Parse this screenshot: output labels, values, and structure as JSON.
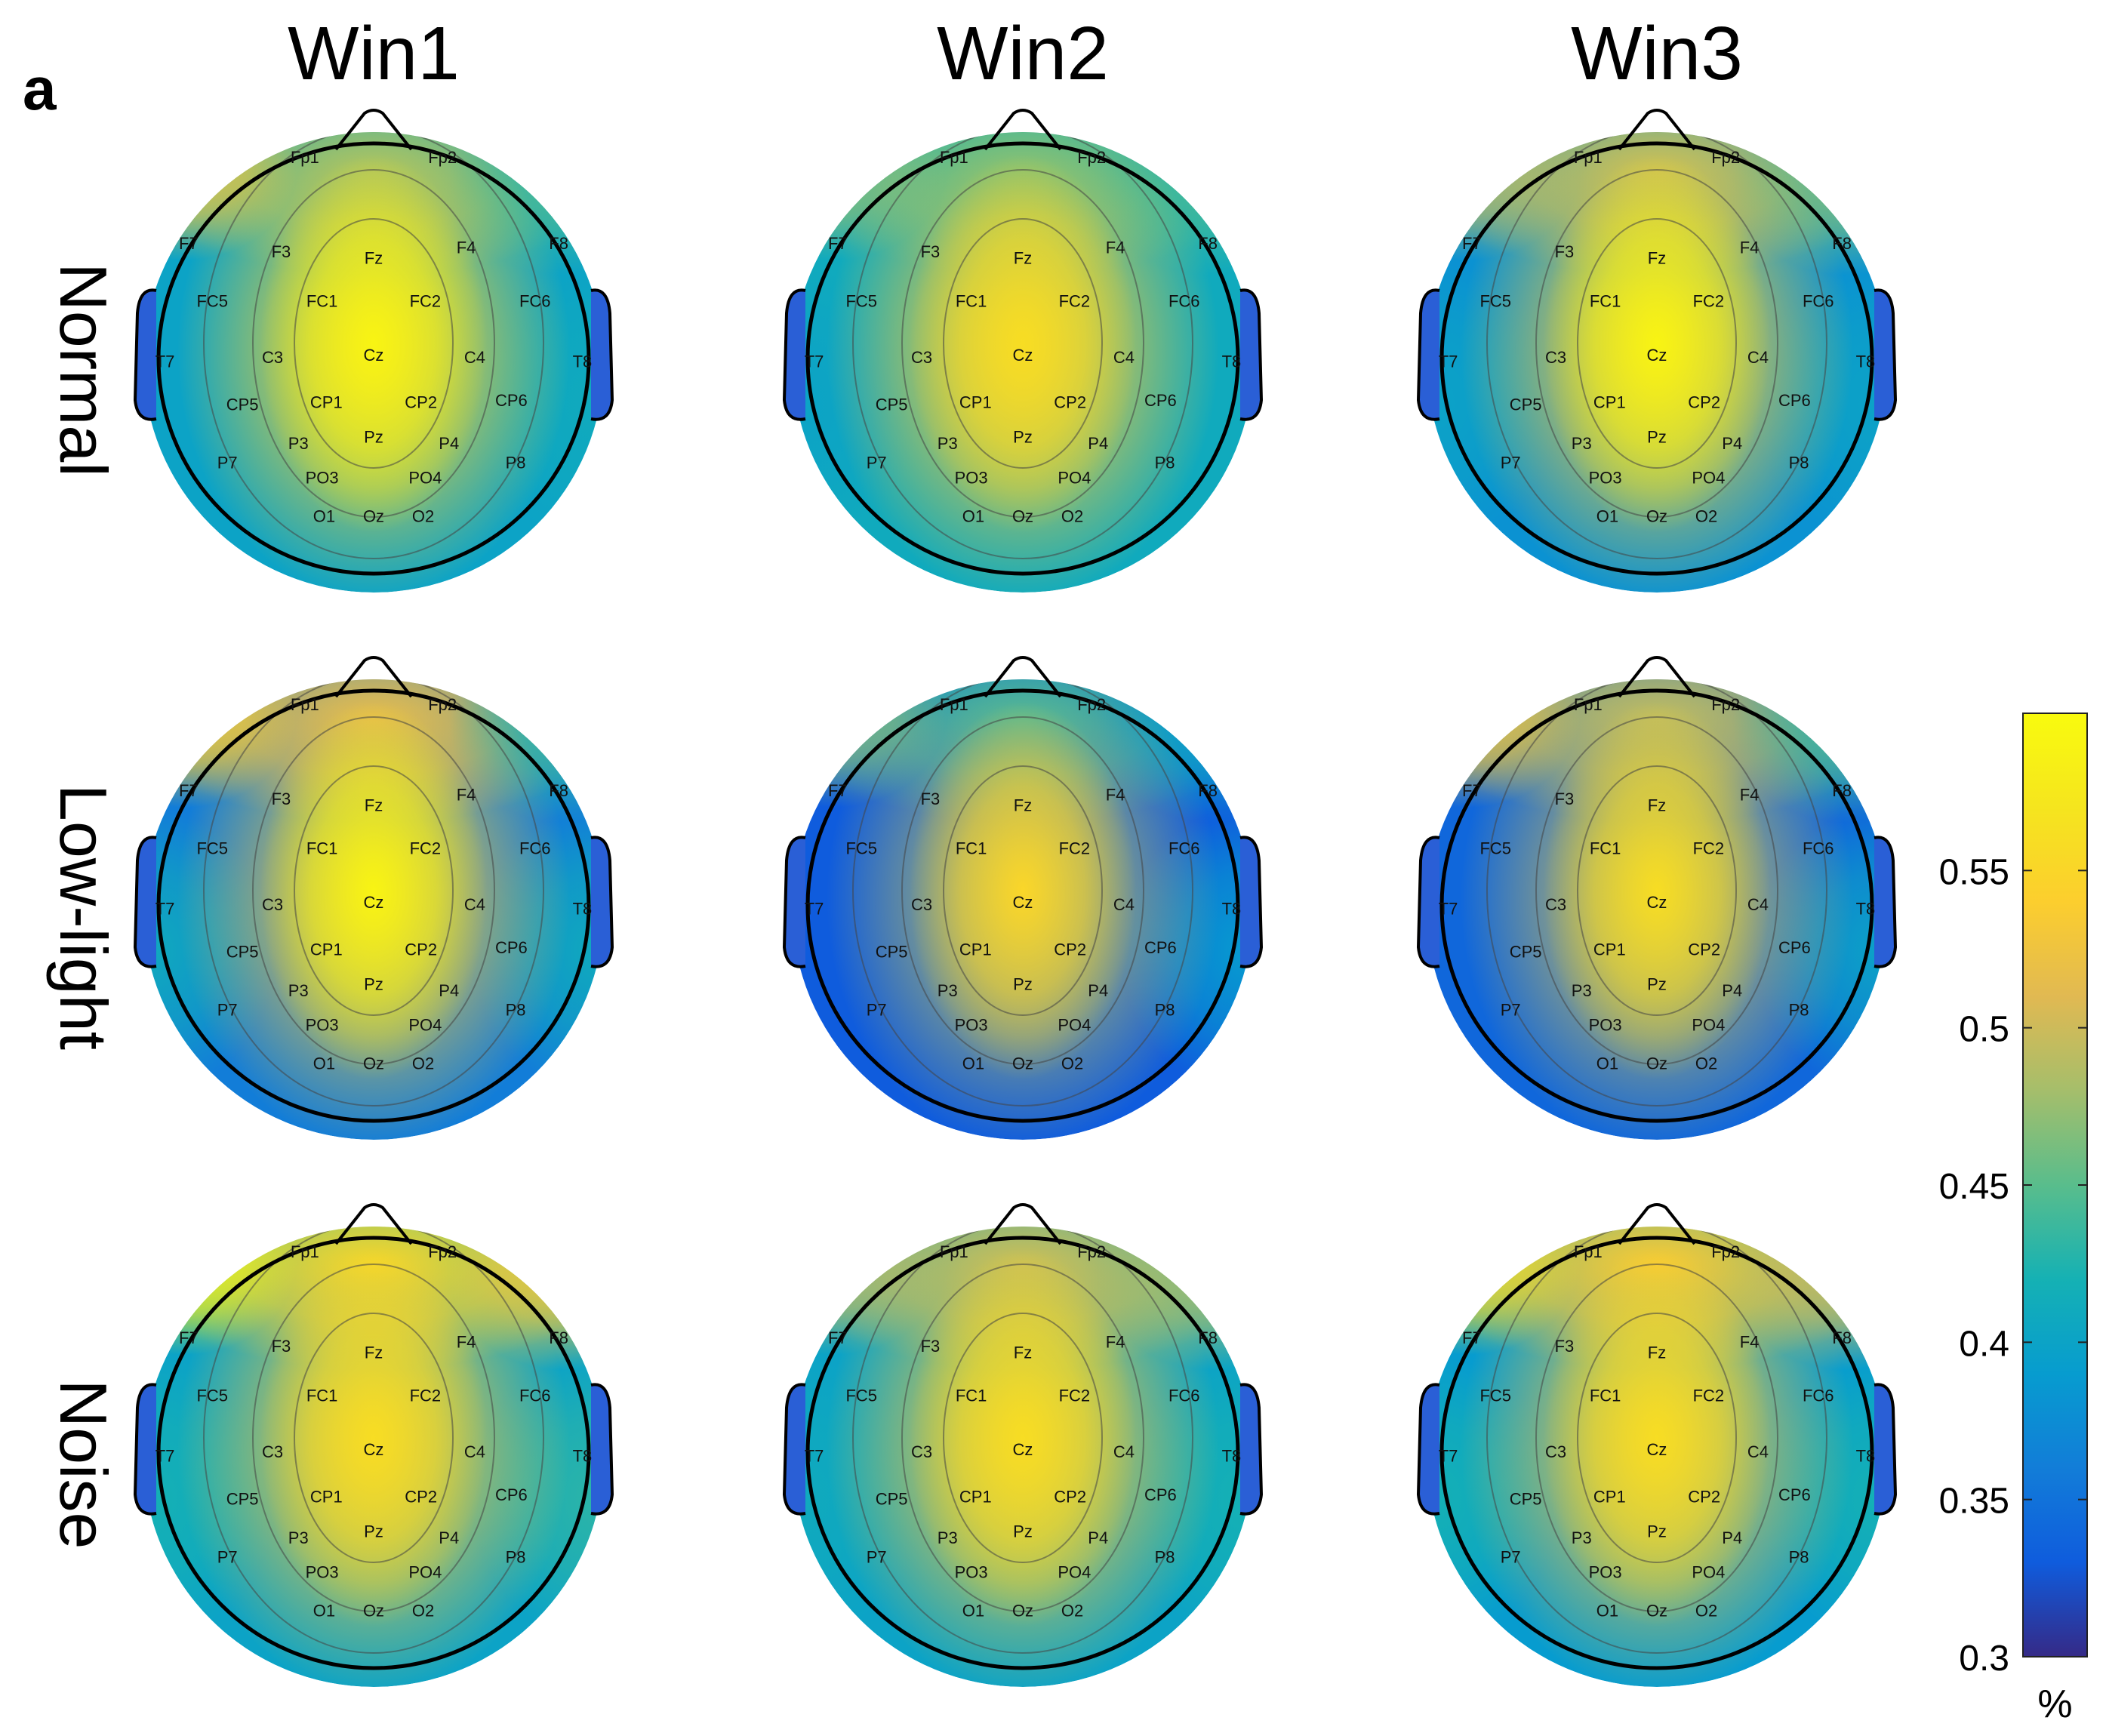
{
  "panel_label": "a",
  "chart_data": {
    "type": "heatmap",
    "columns": [
      "Win1",
      "Win2",
      "Win3"
    ],
    "rows": [
      "Normal",
      "Low-light",
      "Noise"
    ],
    "electrodes": [
      "Fp1",
      "Fp2",
      "F7",
      "F3",
      "Fz",
      "F4",
      "F8",
      "FC5",
      "FC1",
      "FC2",
      "FC6",
      "T7",
      "C3",
      "Cz",
      "C4",
      "T8",
      "CP5",
      "CP1",
      "CP2",
      "CP6",
      "P7",
      "P3",
      "Pz",
      "P4",
      "P8",
      "PO3",
      "PO4",
      "O1",
      "Oz",
      "O2"
    ],
    "colorbar": {
      "ticks": [
        "0.55",
        "0.5",
        "0.45",
        "0.4",
        "0.35",
        "0.3"
      ],
      "tick_values": [
        0.55,
        0.5,
        0.45,
        0.4,
        0.35,
        0.3
      ],
      "range": [
        0.3,
        0.6
      ],
      "unit": "%",
      "colormap": "parula"
    },
    "maps": [
      [
        {
          "center": 0.59,
          "frontal": 0.47,
          "leftFront": 0.53,
          "rightFront": 0.44,
          "left": 0.4,
          "right": 0.41,
          "occipital": 0.4
        },
        {
          "center": 0.56,
          "frontal": 0.45,
          "leftFront": 0.47,
          "rightFront": 0.44,
          "left": 0.4,
          "right": 0.41,
          "occipital": 0.41
        },
        {
          "center": 0.59,
          "frontal": 0.49,
          "leftFront": 0.49,
          "rightFront": 0.46,
          "left": 0.4,
          "right": 0.4,
          "occipital": 0.38
        }
      ],
      [
        {
          "center": 0.59,
          "frontal": 0.51,
          "leftFront": 0.54,
          "rightFront": 0.43,
          "left": 0.41,
          "right": 0.41,
          "occipital": 0.36
        },
        {
          "center": 0.55,
          "frontal": 0.43,
          "leftFront": 0.47,
          "rightFront": 0.4,
          "left": 0.33,
          "right": 0.39,
          "occipital": 0.33
        },
        {
          "center": 0.56,
          "frontal": 0.49,
          "leftFront": 0.53,
          "rightFront": 0.44,
          "left": 0.34,
          "right": 0.4,
          "occipital": 0.34
        }
      ],
      [
        {
          "center": 0.56,
          "frontal": 0.56,
          "leftFront": 0.59,
          "rightFront": 0.53,
          "left": 0.42,
          "right": 0.43,
          "occipital": 0.4
        },
        {
          "center": 0.56,
          "frontal": 0.49,
          "leftFront": 0.49,
          "rightFront": 0.48,
          "left": 0.41,
          "right": 0.42,
          "occipital": 0.4
        },
        {
          "center": 0.56,
          "frontal": 0.54,
          "leftFront": 0.56,
          "rightFront": 0.5,
          "left": 0.42,
          "right": 0.42,
          "occipital": 0.39
        }
      ]
    ]
  }
}
